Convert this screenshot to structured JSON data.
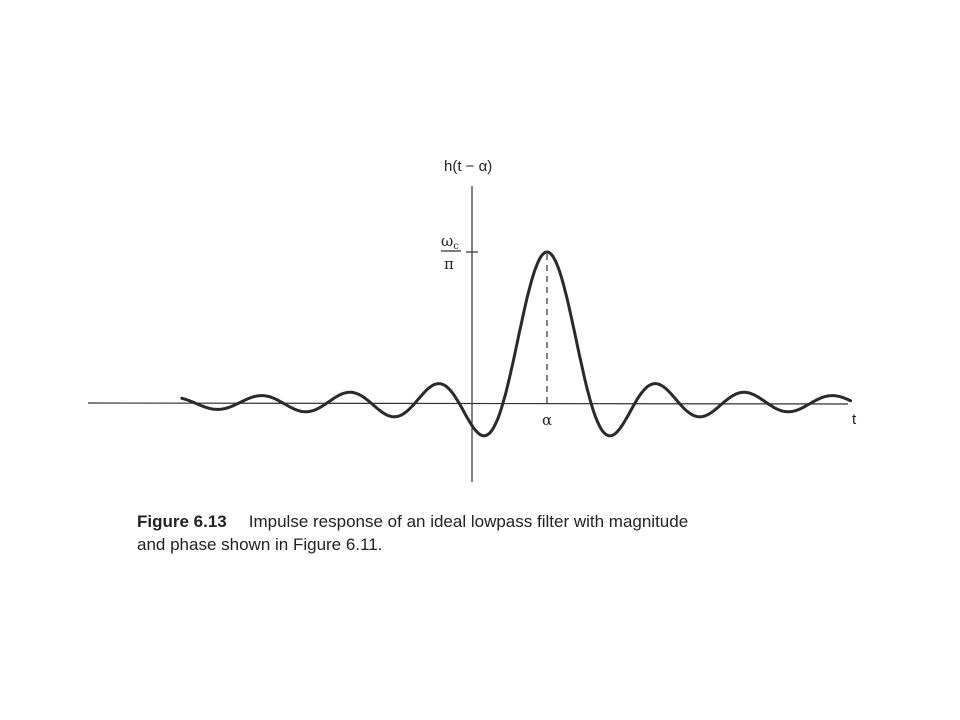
{
  "chart_data": {
    "type": "line",
    "ylabel": "h(t − α)",
    "xlabel": "t",
    "peak_label": {
      "numerator": "ωc",
      "denominator": "π"
    },
    "peak_position_label": "α",
    "series": [
      {
        "function": "sinc",
        "peak_value": 1,
        "x_start": -8.3,
        "x_end": 6.9,
        "zero_spacing": 1
      }
    ],
    "xlim": [
      -8.3,
      7.0
    ],
    "ylim": [
      -0.3,
      1.1
    ],
    "grid": false,
    "legend": "none"
  },
  "caption": {
    "figure_number": "Figure 6.13",
    "line1": "Impulse response of an ideal lowpass filter with magnitude",
    "line2": "and phase shown in Figure 6.11."
  },
  "colors": {
    "curve": "#2a2a2a",
    "axis": "#333333",
    "text": "#222222"
  }
}
